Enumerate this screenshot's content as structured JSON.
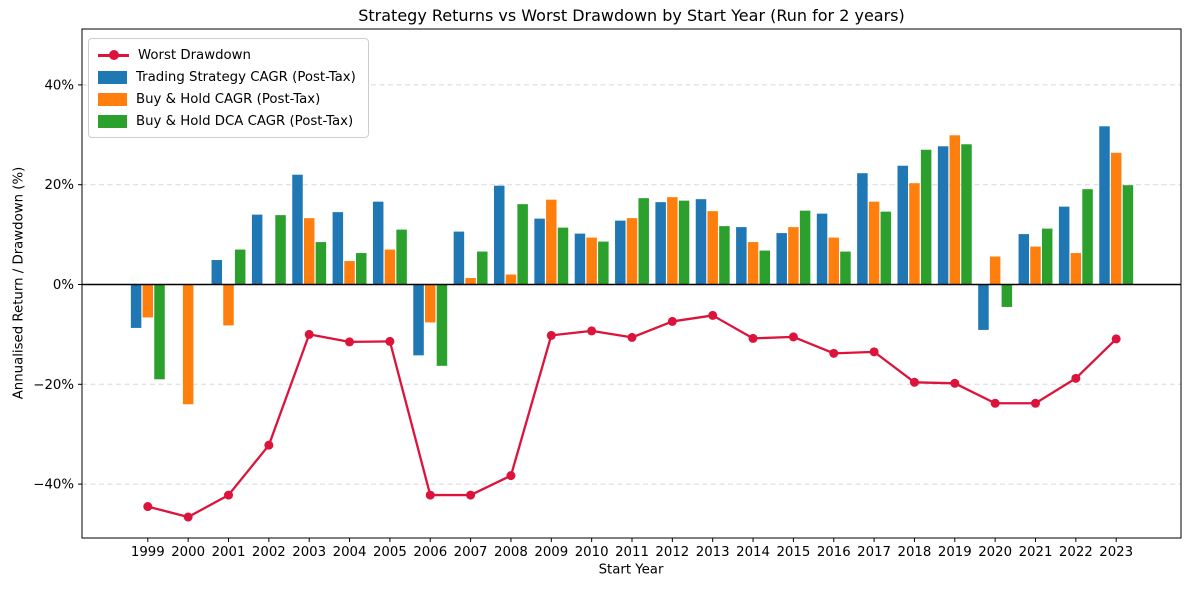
{
  "chart": {
    "title": "Strategy Returns vs Worst Drawdown by Start Year (Run for 2 years)",
    "xlabel": "Start Year",
    "ylabel": "Annualised Return / Drawdown (%)"
  },
  "chart_data": {
    "type": "bar+line",
    "title": "Strategy Returns vs Worst Drawdown by Start Year (Run for 2 years)",
    "xlabel": "Start Year",
    "ylabel": "Annualised Return / Drawdown (%)",
    "categories": [
      "1999",
      "2000",
      "2001",
      "2002",
      "2003",
      "2004",
      "2005",
      "2006",
      "2007",
      "2008",
      "2009",
      "2010",
      "2011",
      "2012",
      "2013",
      "2014",
      "2015",
      "2016",
      "2017",
      "2018",
      "2019",
      "2020",
      "2021",
      "2022",
      "2023"
    ],
    "series": [
      {
        "name": "Trading Strategy CAGR (Post-Tax)",
        "type": "bar",
        "color": "#1f77b4",
        "values": [
          -8.7,
          0,
          4.9,
          14.0,
          22.0,
          14.5,
          16.6,
          -14.2,
          10.6,
          19.8,
          13.2,
          10.2,
          12.8,
          16.5,
          17.1,
          11.5,
          10.3,
          14.2,
          22.3,
          23.8,
          27.7,
          -9.1,
          10.1,
          15.6,
          31.7
        ]
      },
      {
        "name": "Buy & Hold CAGR (Post-Tax)",
        "type": "bar",
        "color": "#ff7f0e",
        "values": [
          -6.6,
          -24.0,
          -8.2,
          0,
          13.3,
          4.7,
          7.0,
          -7.6,
          1.3,
          2.0,
          17.0,
          9.4,
          13.3,
          17.5,
          14.7,
          8.5,
          11.5,
          9.4,
          16.6,
          20.3,
          29.9,
          5.6,
          7.6,
          6.3,
          26.4
        ]
      },
      {
        "name": "Buy & Hold DCA CAGR (Post-Tax)",
        "type": "bar",
        "color": "#2ca02c",
        "values": [
          -19.0,
          0,
          7.0,
          13.9,
          8.5,
          6.3,
          11.0,
          -16.3,
          6.6,
          16.1,
          11.4,
          8.6,
          17.3,
          16.8,
          11.7,
          6.8,
          14.8,
          6.6,
          14.6,
          27.0,
          28.1,
          -4.5,
          11.2,
          19.1,
          19.9
        ]
      },
      {
        "name": "Worst Drawdown",
        "type": "line",
        "color": "#dc143c",
        "values": [
          -44.5,
          -46.6,
          -42.2,
          -32.2,
          -10.0,
          -11.5,
          -11.4,
          -42.2,
          -42.2,
          -38.3,
          -10.2,
          -9.3,
          -10.6,
          -7.4,
          -6.2,
          -10.8,
          -10.5,
          -13.8,
          -13.5,
          -19.6,
          -19.8,
          -23.8,
          -23.8,
          -18.8,
          -10.9
        ]
      }
    ],
    "legend_order": [
      "Worst Drawdown",
      "Trading Strategy CAGR (Post-Tax)",
      "Buy & Hold CAGR (Post-Tax)",
      "Buy & Hold DCA CAGR (Post-Tax)"
    ],
    "legend_position": "upper left",
    "yticks": [
      -40,
      -20,
      0,
      20,
      40
    ],
    "ytick_labels": [
      "−40%",
      "−20%",
      "0%",
      "20%",
      "40%"
    ],
    "ylim": [
      -50.8,
      51.2
    ],
    "grid": "dashed-horizontal",
    "grid_color": "#d8d8d8",
    "zero_line_color": "#000000",
    "background": "#ffffff"
  }
}
